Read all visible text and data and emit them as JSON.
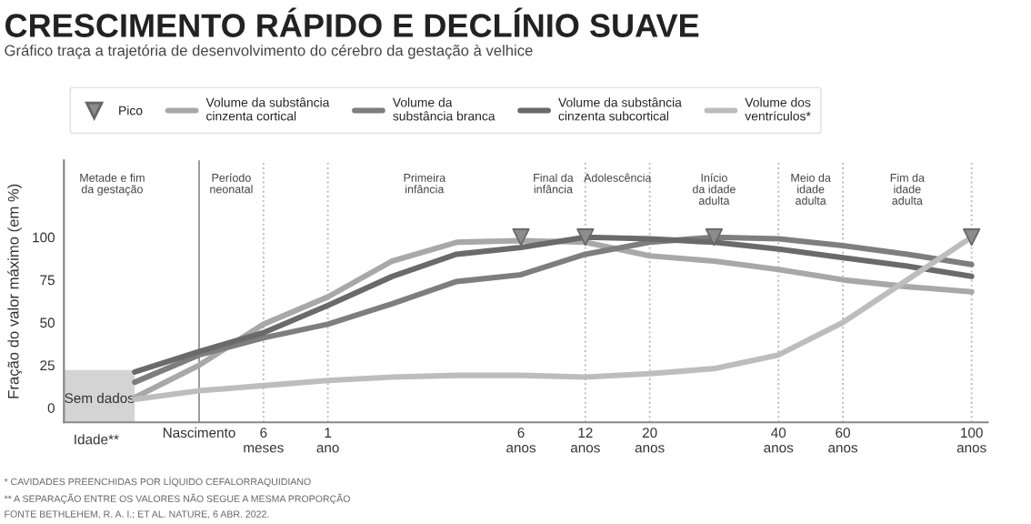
{
  "chart_data": {
    "type": "line",
    "title": "CRESCIMENTO RÁPIDO E DECLÍNIO SUAVE",
    "subtitle": "Gráfico traça a trajetória de desenvolvimento do cérebro da gestação à velhice",
    "ylabel": "Fração do valor máximo (em %)",
    "xlabel": "Idade**",
    "categories": [
      null,
      "Nascimento",
      "6\nmeses",
      "1\nano",
      null,
      null,
      "6\nanos",
      "12\nanos",
      "20\nanos",
      null,
      "40\nanos",
      "60\nanos",
      null,
      "100\nanos"
    ],
    "series": [
      {
        "name": "Volume da substância cinzenta cortical",
        "color": "#a8a8a8",
        "values": [
          6,
          25,
          49,
          65,
          86,
          97,
          98,
          97,
          89,
          86,
          81,
          75,
          71,
          68
        ]
      },
      {
        "name": "Volume da substância branca",
        "color": "#7e7e7e",
        "values": [
          15,
          31,
          41,
          49,
          61,
          74,
          78,
          90,
          97,
          100,
          99,
          95,
          90,
          84
        ]
      },
      {
        "name": "Volume da substância cinzenta subcortical",
        "color": "#6a6a6a",
        "values": [
          21,
          33,
          44,
          60,
          77,
          90,
          94,
          100,
          99,
          97,
          93,
          88,
          83,
          77
        ]
      },
      {
        "name": "Volume dos ventrículos*",
        "color": "#bdbdbd",
        "values": [
          5,
          10,
          13,
          16,
          18,
          19,
          19,
          18,
          20,
          23,
          31,
          50,
          75,
          100
        ]
      },
      {
        "name": "Pico",
        "type": "scatter",
        "marker": "triangle",
        "color": "#8c8c8c",
        "values": [
          null,
          null,
          null,
          null,
          null,
          null,
          100,
          100,
          null,
          100,
          null,
          null,
          null,
          100
        ]
      }
    ],
    "ylim": [
      -8.5,
      145
    ],
    "yticks": [
      0,
      25,
      50,
      75,
      100
    ],
    "ref_lines": [
      {
        "axis": "x",
        "value": "Nascimento",
        "line_style": "solid",
        "color": "#999999"
      },
      {
        "axis": "x",
        "value": "6\nmeses",
        "line_style": "dotted",
        "color": "#bbbbbb"
      },
      {
        "axis": "x",
        "value": "1\nano",
        "line_style": "dotted",
        "color": "#bbbbbb"
      },
      {
        "axis": "x",
        "value": "12\nanos",
        "line_style": "dotted",
        "color": "#bbbbbb"
      },
      {
        "axis": "x",
        "value": "20\nanos",
        "line_style": "dotted",
        "color": "#bbbbbb"
      },
      {
        "axis": "x",
        "value": "40\nanos",
        "line_style": "dotted",
        "color": "#bbbbbb"
      },
      {
        "axis": "x",
        "value": "60\nanos",
        "line_style": "dotted",
        "color": "#bbbbbb"
      },
      {
        "axis": "x",
        "value": "100\nanos",
        "line_style": "dotted",
        "color": "#bbbbbb"
      }
    ],
    "legend": "top",
    "annotations": [
      "Sem dados",
      "Metade e fim\nda gestação",
      "Período\nneonatal",
      "Primeira\ninfância",
      "Final da\ninfância",
      "Adolescência",
      "Início\nda idade\nadulta",
      "Meio da\nidade\nadulta",
      "Fim da\nidade\nadulta",
      "* CAVIDADES PREENCHIDAS POR LÍQUIDO CEFALORRAQUIDIANO",
      "** A SEPARAÇÃO ENTRE OS VALORES NÃO SEGUE A MESMA PROPORÇÃO",
      "FONTE BETHLEHEM, R. A. I.; ET AL. NATURE, 6 ABR. 2022."
    ]
  }
}
